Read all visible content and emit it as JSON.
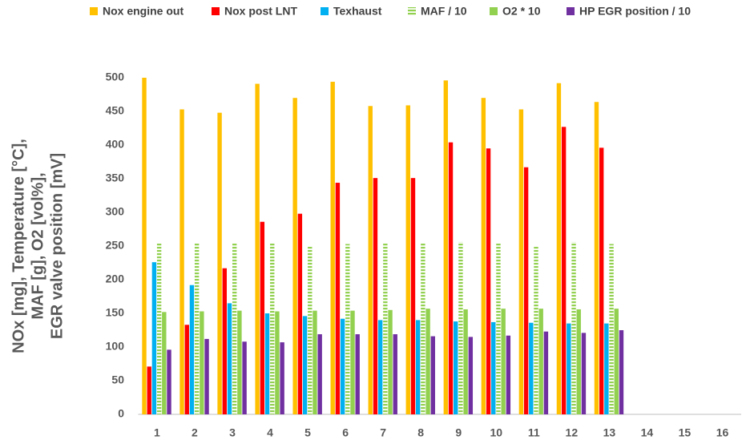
{
  "chart_data": {
    "type": "bar",
    "y_label": [
      "NOx [mg], Temperature [°C],",
      "MAF [g], O2 [vol%],",
      "EGR valve position [mV]"
    ],
    "categories": [
      "1",
      "2",
      "3",
      "4",
      "5",
      "6",
      "7",
      "8",
      "9",
      "10",
      "11",
      "12",
      "13",
      "14",
      "15",
      "16"
    ],
    "series": [
      {
        "name": "Nox engine out",
        "color": "#ffc000",
        "values": [
          500,
          453,
          448,
          491,
          470,
          494,
          458,
          459,
          496,
          470,
          453,
          492,
          464,
          null,
          null,
          null
        ]
      },
      {
        "name": "Nox post LNT",
        "color": "#ff0000",
        "values": [
          71,
          133,
          217,
          286,
          298,
          344,
          351,
          351,
          404,
          395,
          367,
          427,
          396,
          null,
          null,
          null
        ]
      },
      {
        "name": "Texhaust",
        "color": "#00b0f0",
        "values": [
          226,
          192,
          165,
          150,
          146,
          142,
          140,
          140,
          138,
          137,
          136,
          135,
          135,
          null,
          null,
          null
        ]
      },
      {
        "name": "MAF / 10",
        "color": "#92d050",
        "pattern": "horizontal-stripes",
        "values": [
          255,
          254,
          254,
          254,
          250,
          253,
          254,
          254,
          256,
          255,
          250,
          256,
          253,
          null,
          null,
          null
        ]
      },
      {
        "name": "O2 * 10",
        "color": "#92d050",
        "values": [
          152,
          153,
          154,
          153,
          154,
          154,
          155,
          157,
          156,
          157,
          157,
          156,
          157,
          null,
          null,
          null
        ]
      },
      {
        "name": "HP EGR position / 10",
        "color": "#7030a0",
        "values": [
          96,
          112,
          108,
          107,
          119,
          119,
          119,
          116,
          115,
          117,
          123,
          121,
          125,
          null,
          null,
          null
        ]
      }
    ],
    "ylim": [
      0,
      500
    ],
    "yticks": [
      0,
      50,
      100,
      150,
      200,
      250,
      300,
      350,
      400,
      450,
      500
    ],
    "grid": false,
    "legend": "top"
  }
}
